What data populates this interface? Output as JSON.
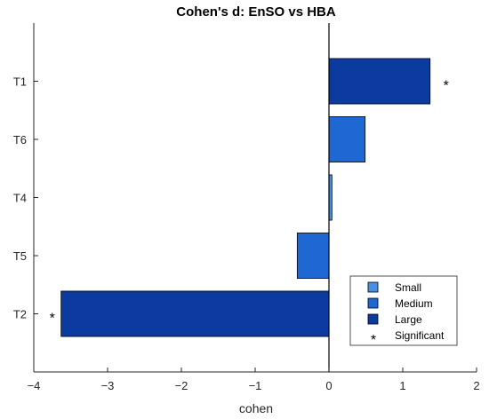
{
  "chart_data": {
    "type": "bar",
    "orientation": "horizontal",
    "title": "Cohen's d: EnSO vs HBA",
    "xlabel": "cohen",
    "ylabel": "",
    "xlim": [
      -4,
      2
    ],
    "xticks": [
      -4,
      -3,
      -2,
      -1,
      0,
      1,
      2
    ],
    "xtick_labels": [
      "−4",
      "−3",
      "−2",
      "−1",
      "0",
      "1",
      "2"
    ],
    "categories": [
      "T1",
      "T6",
      "T4",
      "T5",
      "T2"
    ],
    "values": [
      1.37,
      0.49,
      0.04,
      -0.43,
      -3.63
    ],
    "effect_size": [
      "Large",
      "Medium",
      "Small",
      "Medium",
      "Large"
    ],
    "significant": [
      true,
      false,
      false,
      false,
      true
    ],
    "significance_marker": "*",
    "grid": false,
    "legend_position": "bottom-right",
    "legend": [
      {
        "label": "Small",
        "kind": "Small"
      },
      {
        "label": "Medium",
        "kind": "Medium"
      },
      {
        "label": "Large",
        "kind": "Large"
      },
      {
        "label": "Significant",
        "kind": "marker"
      }
    ],
    "colors": {
      "Small": "#4a90e2",
      "Medium": "#1f68d4",
      "Large": "#0c3ba0",
      "axis": "#262626"
    }
  }
}
